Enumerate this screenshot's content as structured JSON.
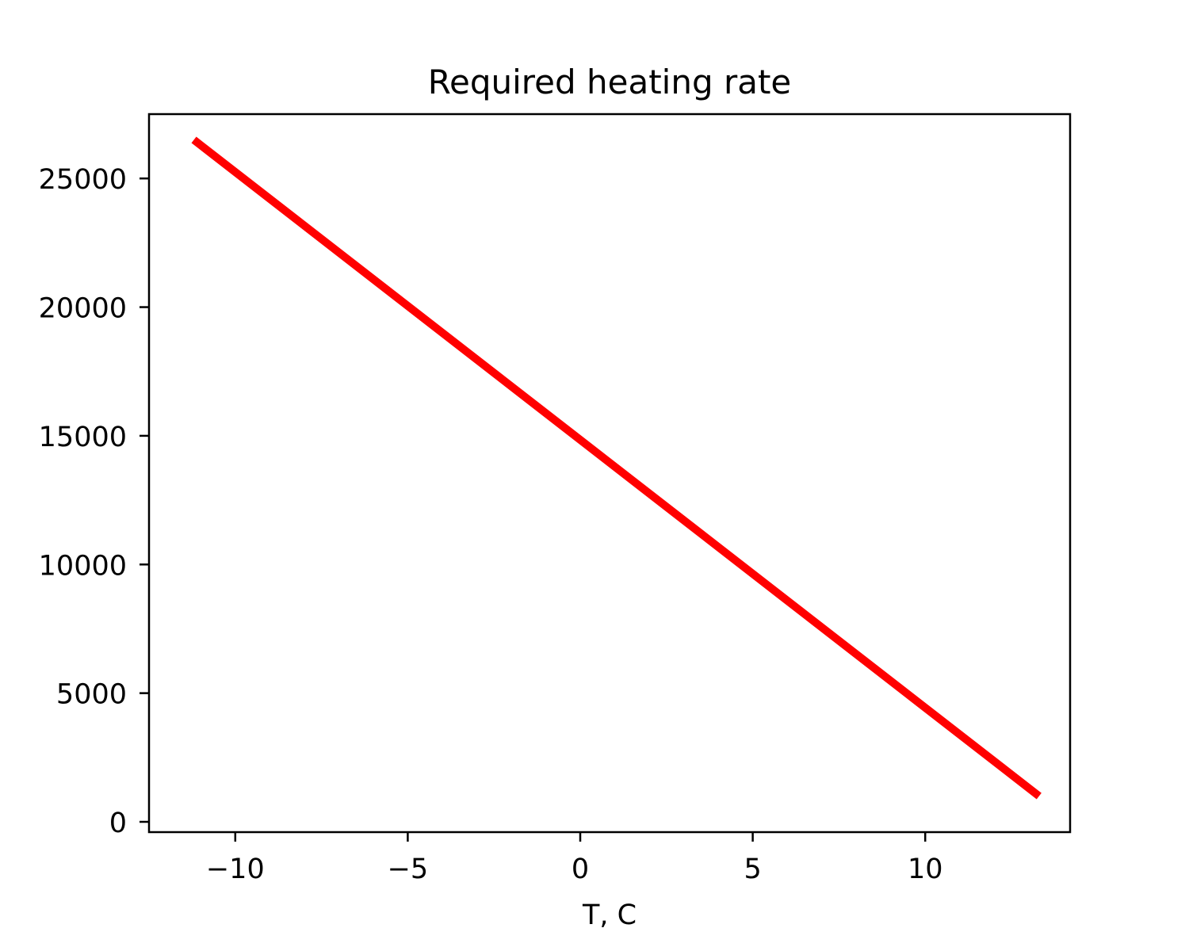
{
  "chart_data": {
    "type": "line",
    "title": "Required heating rate",
    "xlabel": "T, C",
    "ylabel": "",
    "xlim": [
      -12.5,
      14.2
    ],
    "ylim": [
      -400,
      27500
    ],
    "xticks": [
      -10,
      -5,
      0,
      5,
      10
    ],
    "yticks": [
      0,
      5000,
      10000,
      15000,
      20000,
      25000
    ],
    "xtick_labels": [
      "−10",
      "−5",
      "0",
      "5",
      "10"
    ],
    "ytick_labels": [
      "0",
      "5000",
      "10000",
      "15000",
      "20000",
      "25000"
    ],
    "grid": false,
    "series": [
      {
        "color": "#ff0000",
        "x": [
          -11.2,
          13.3
        ],
        "y": [
          26500,
          1000
        ]
      }
    ]
  }
}
